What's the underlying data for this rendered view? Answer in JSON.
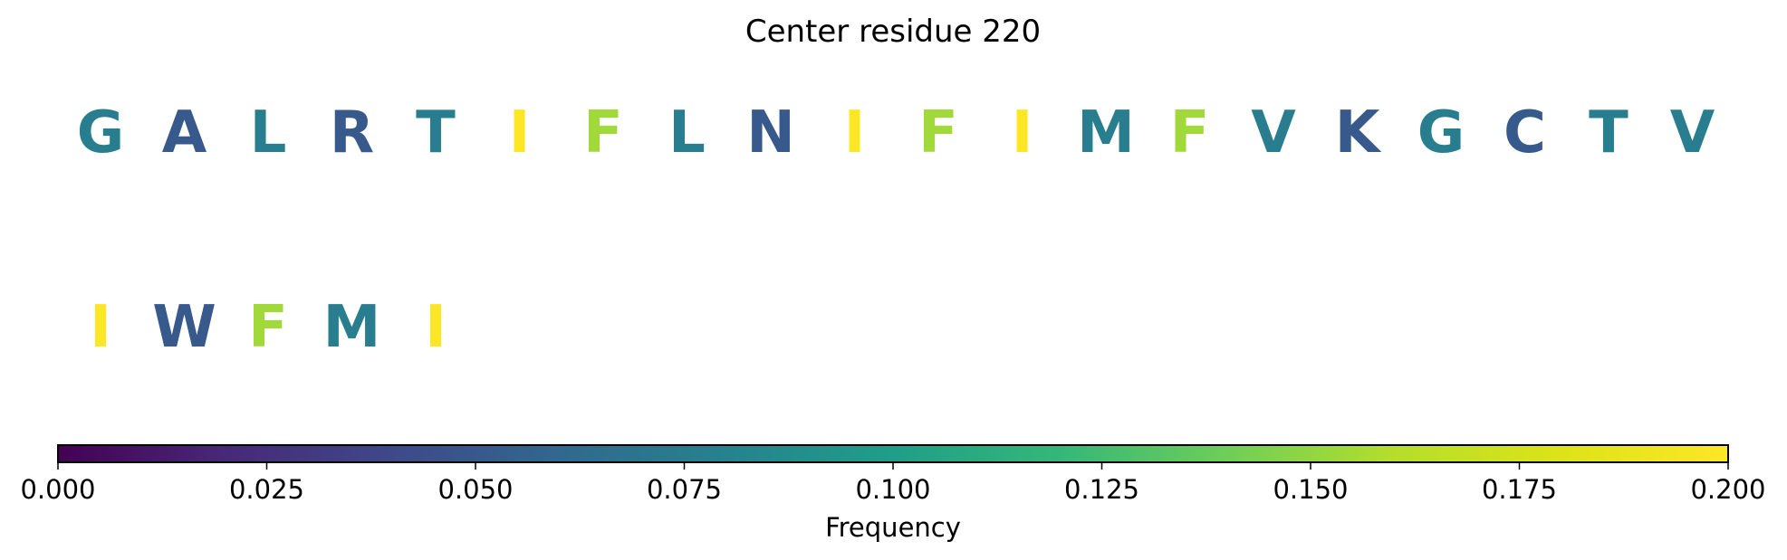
{
  "chart_data": {
    "type": "heatmap",
    "title": "Center residue 220",
    "rows": [
      {
        "residues": [
          "G",
          "A",
          "L",
          "R",
          "T",
          "I",
          "F",
          "L",
          "N",
          "I",
          "F",
          "I",
          "M",
          "F",
          "V",
          "K",
          "G",
          "C",
          "T",
          "V"
        ],
        "frequencies": [
          0.077,
          0.05,
          0.077,
          0.05,
          0.077,
          0.2,
          0.154,
          0.077,
          0.05,
          0.2,
          0.154,
          0.2,
          0.077,
          0.154,
          0.077,
          0.05,
          0.077,
          0.05,
          0.077,
          0.077
        ]
      },
      {
        "residues": [
          "I",
          "W",
          "F",
          "M",
          "I"
        ],
        "frequencies": [
          0.2,
          0.05,
          0.154,
          0.077,
          0.2
        ]
      }
    ],
    "colorbar": {
      "colormap": "viridis",
      "label": "Frequency",
      "range": [
        0.0,
        0.2
      ],
      "ticks": [
        0.0,
        0.025,
        0.05,
        0.075,
        0.1,
        0.125,
        0.15,
        0.175,
        0.2
      ],
      "tick_labels": [
        "0.000",
        "0.025",
        "0.050",
        "0.075",
        "0.100",
        "0.125",
        "0.150",
        "0.175",
        "0.200"
      ]
    }
  }
}
